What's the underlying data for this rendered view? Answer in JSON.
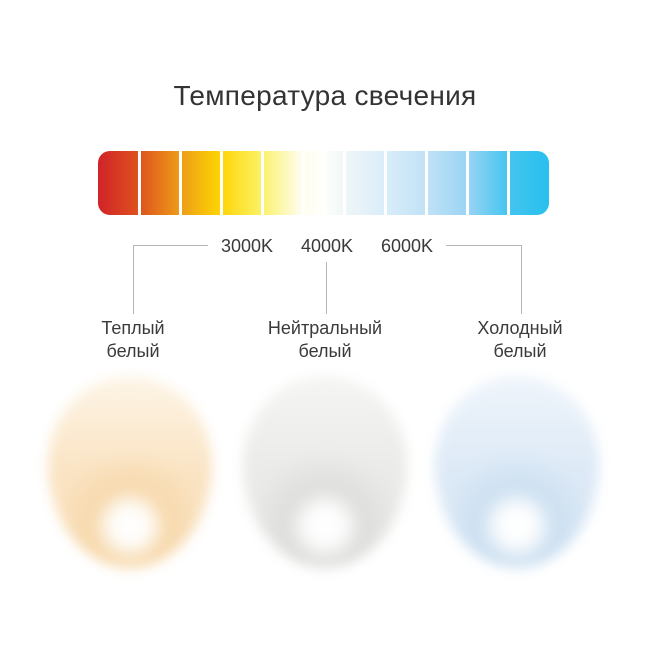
{
  "title": "Температура свечения",
  "scale_bar": {
    "segments": 11,
    "separator_color": "#ffffff",
    "gradient_stops": [
      {
        "pos": "0%",
        "color": "#d12329"
      },
      {
        "pos": "9%",
        "color": "#de511e"
      },
      {
        "pos": "18%",
        "color": "#ec9b18"
      },
      {
        "pos": "27%",
        "color": "#fed404"
      },
      {
        "pos": "36%",
        "color": "#fbf163"
      },
      {
        "pos": "45%",
        "color": "#fefdee"
      },
      {
        "pos": "50%",
        "color": "#fffffb"
      },
      {
        "pos": "55%",
        "color": "#eef6f7"
      },
      {
        "pos": "64%",
        "color": "#d9edf9"
      },
      {
        "pos": "73%",
        "color": "#c0e1f7"
      },
      {
        "pos": "82%",
        "color": "#99d4f4"
      },
      {
        "pos": "91%",
        "color": "#44c5ef"
      },
      {
        "pos": "100%",
        "color": "#28bfee"
      }
    ]
  },
  "temperature_labels": [
    {
      "text": "3000K"
    },
    {
      "text": "4000K"
    },
    {
      "text": "6000K"
    }
  ],
  "categories": [
    {
      "name": "warm-white",
      "label_line1": "Теплый",
      "label_line2": "белый",
      "orb": {
        "top": "#fdf5e7",
        "main": "#fae3c2",
        "bottom": "#f7d9ad",
        "hotspot": "#ffffff"
      }
    },
    {
      "name": "neutral-white",
      "label_line1": "Нейтральный",
      "label_line2": "белый",
      "orb": {
        "top": "#f5f5f3",
        "main": "#eaeae8",
        "bottom": "#dededc",
        "hotspot": "#ffffff"
      }
    },
    {
      "name": "cold-white",
      "label_line1": "Холодный",
      "label_line2": "белый",
      "orb": {
        "top": "#eff5fb",
        "main": "#dce9f6",
        "bottom": "#cde0f1",
        "hotspot": "#ffffff"
      }
    }
  ],
  "colors": {
    "background": "#ffffff",
    "title_text": "#333333",
    "label_text": "#3a3a3a",
    "connector_line": "#b5b5b5"
  }
}
